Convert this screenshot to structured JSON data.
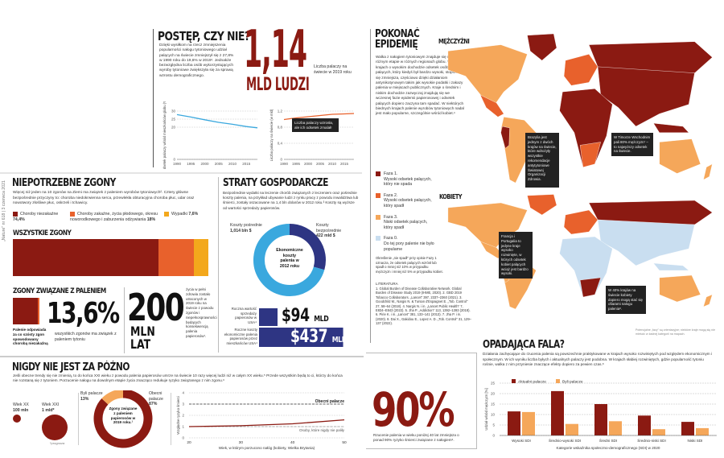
{
  "side_label": "„Nature\" nr 618 | 3 czerwca 2021",
  "progress": {
    "title": "POSTĘP, CZY NIE?",
    "text": "Dzięki wysiłkom na rzecz zmniejszenia popularności nałogu tytoniowego udział palących na świecie zmniejszył się z 27,8% w 1990 roku do 19,6% w 2019¹. Jednakże bezwzględna liczba osób wykorzystujących wyroby tytoniowe zwiększyła się za sprawą wzrostu demograficznego.",
    "big_number": "1,14",
    "big_unit": "MLD LUDZI",
    "big_caption": "Liczba palaczy na świecie w 2019 roku",
    "callout": "Liczba palaczy wzrosła, ale ich odsetek zmalał!"
  },
  "chart_data": [
    {
      "type": "line",
      "title": "",
      "ylabel": "Odsetek palaczy wśród mieszkańców globu (%)",
      "xlabel": "",
      "x": [
        1990,
        1995,
        2000,
        2005,
        2010,
        2015,
        2019
      ],
      "series": [
        {
          "name": "Odsetek palaczy",
          "values": [
            27.8,
            26.3,
            24.6,
            23.0,
            21.8,
            20.4,
            19.6
          ],
          "color": "#3aa8de"
        }
      ],
      "ylim": [
        0,
        30
      ],
      "yticks": [
        "0",
        "20",
        "25",
        "30"
      ],
      "xticks": [
        "1990",
        "1995",
        "2000",
        "2005",
        "2010",
        "2015"
      ]
    },
    {
      "type": "line",
      "title": "",
      "ylabel": "Liczba palaczy na świecie (w mld)",
      "xlabel": "",
      "x": [
        1990,
        1995,
        2000,
        2005,
        2010,
        2015,
        2019
      ],
      "series": [
        {
          "name": "Liczba palaczy",
          "values": [
            0.99,
            1.03,
            1.06,
            1.09,
            1.12,
            1.13,
            1.14
          ],
          "color": "#e8612c"
        }
      ],
      "ylim": [
        0,
        1.2
      ],
      "yticks": [
        "0",
        "0,4",
        "0,8",
        "1,2"
      ],
      "xticks": [
        "1990",
        "1995",
        "2000",
        "2005",
        "2010",
        "2015"
      ]
    },
    {
      "type": "bar",
      "title": "OPADAJĄCA FALA?",
      "xlabel": "Kategorie wskaźnika społeczno-demograficznego (SDI) w 2020",
      "ylabel": "Udział wśród mężczyzn [%]",
      "categories": [
        "Wysoki SDI",
        "Średnio-wysoki SDI",
        "Średni SDI",
        "Średnio-niski SDI",
        "Niski SDI"
      ],
      "series": [
        {
          "name": "Aktualni palacze",
          "values": [
            11.5,
            21.2,
            15.0,
            9.5,
            6.5
          ],
          "color": "#8b1a12"
        },
        {
          "name": "Byli palacze",
          "values": [
            11.2,
            5.5,
            6.8,
            3.0,
            3.5
          ],
          "color": "#f5a75a"
        }
      ],
      "ylim": [
        0,
        25
      ],
      "yticks": [
        "0",
        "5",
        "10",
        "15",
        "20",
        "25"
      ],
      "legend": "top-left"
    },
    {
      "type": "line",
      "title": "",
      "xlabel": "Wiek, w którym porzucono nałóg (kobiety, Wielka Brytania)",
      "ylabel": "Względne ryzyko śmierci",
      "x": [
        20,
        30,
        40,
        50
      ],
      "series": [
        {
          "name": "Porzucający nałóg",
          "values": [
            1.0,
            1.08,
            1.25,
            1.6
          ],
          "color": "#8b1a12"
        },
        {
          "name": "Obecni palacze",
          "values": [
            3,
            3,
            3,
            3
          ],
          "color": "#333"
        },
        {
          "name": "Osoby, które nigdy nie paliły",
          "values": [
            1,
            1,
            1,
            1
          ],
          "color": "#999"
        }
      ],
      "xlim": [
        20,
        50
      ],
      "ylim": [
        0,
        4
      ],
      "xticks": [
        "20",
        "30",
        "40",
        "50"
      ],
      "yticks": [
        "0",
        "1",
        "2",
        "3",
        "4"
      ],
      "labels": {
        "current": "Obecni palacze",
        "never": "Osoby, które nigdy nie paliły"
      }
    }
  ],
  "deaths": {
    "title": "NIEPOTRZEBNE ZGONY",
    "text": "Więcej niż jeden na 10 zgonów na Ziemi ma związek z paleniem wyrobów tytoniowych². Cztery główne bezpośrednie przyczyny to: choroba niedokrwienna serca, przewlekła obturacyjna choroba płuc, udar oraz nowotwory złośliwe płuc, oskrzeli i tchawicy.",
    "legend": [
      {
        "label": "Choroby niezakaźne",
        "value": "74,4%",
        "color": "#8b1a12",
        "share": 74.4
      },
      {
        "label": "Choroby zakaźne, życia płodowego, okresu noworodkowego i zaburzenia odżywiania",
        "value": "18%",
        "color": "#e8612c",
        "share": 18
      },
      {
        "label": "Wypadki",
        "value": "7,6%",
        "color": "#f3a81c",
        "share": 7.6
      }
    ],
    "all_label": "WSZYSTKIE ZGONY",
    "smoking_title": "ZGONY ZWIĄZANE Z PALENIEM",
    "smoking_note": "Palenie odpowiada za co szósty zgon spowodowany chorobą niezakaźną",
    "pct": "13,6%",
    "pct_caption": "wszystkich zgonów ma związek z paleniem tytoniu",
    "years_number": "200",
    "years_unit1": "MLN",
    "years_unit2": "LAT",
    "years_caption": "życia w pełni zdrowia zostało utraconych w 2019 roku na świecie z powodu zgonów i niepełnosprawności będących konsekwencją palenia papierosów¹."
  },
  "economy": {
    "title": "STRATY GOSPODARCZE",
    "text": "Bezpośrednie wydatki na leczenie chorób związanych z leczeniem oraz pośrednie koszty palenia, na przykład ubywanie ludzi z rynku pracy z powodu inwalidztwa lub śmierci, zostały oszacowane na 1,4 bln dolarów w 2012 roku.³ Koszty są wyższe od wartości sprzedaży papierosów.",
    "indirect_label": "Koszty pośrednie",
    "indirect_value": "1,014 bln $",
    "direct_label": "Koszty bezpośrednie",
    "direct_value": "422 mld $",
    "donut_center": "Ekonomiczne koszty palenia w 2012 roku",
    "indirect_share": 70.6,
    "direct_share": 29.4,
    "sales_label": "Roczna wartość sprzedaży papierosów w USA⁴",
    "sales_value": "$94",
    "sales_unit": "MLD",
    "costs_label": "Roczne koszty ekonomiczne palenia papierosów przez mieszkańców USA⁴",
    "costs_value": "$437",
    "costs_unit": "MLD"
  },
  "never": {
    "title": "NIGDY NIE JEST ZA PÓŹNO",
    "text": "Jeśli obecne trendy się nie zmienią, to do końca XXI wieku z powodu palenia papierosów umrze na świecie 10 razy więcej ludzi niż w całym XX wieku.⁵ Przede wszystkim będą to ci, którzy do końca nie rozstaną się z tytoniem. Porzucenie nałogu na dowolnym etapie życia znacząco redukuje ryzyko związanego z nim zgonu.⁶",
    "c20_label": "Wiek XX",
    "c20_value": "100 mln",
    "c21_label": "Wiek XXI",
    "c21_value": "1 mld*",
    "forecast": "*prognoza",
    "former_label": "Byli palacze",
    "former_value": "13%",
    "current_label": "Obecni palacze",
    "current_value": "87%",
    "donut_center": "Zgony związane z paleniem papierosów w 2019 roku.¹",
    "former_share": 13,
    "current_share": 87
  },
  "epidemic": {
    "title1": "POKONAĆ",
    "title2": "EPIDEMIĘ",
    "text": "Walka z nałogiem tytoniowym znajduje się na różnym etapie w różnych regionach globu. W wielu krajach o wysokim dochodzie odsetek osób palących, który kiedyś był bardzo wysoki, stopniowo się zmniejsza, częściowo dzięki działaniom antynikotynowym takim jak wysokie podatki i zakazy palenia w miejscach publicznych. Kraje o średnim i niskim dochodzie zazwyczaj znajdują się we wczesnej fazie epidemii papierosowej i odsetek palących dopiero zaczyna tam spadać. W niektórych biednych krajach palenie wyrobów tytoniowych nadal jest mało popularne, szczególnie wśród kobiet.⁹",
    "phases": [
      {
        "label": "Faza 1.",
        "desc": "Wysoki odsetek palących, który nie spada",
        "color": "#8b1a12"
      },
      {
        "label": "Faza 2.",
        "desc": "Wysoki odsetek palących, który spadł",
        "color": "#e8612c"
      },
      {
        "label": "Faza 3.",
        "desc": "Niski odsetek palących, który spadł",
        "color": "#f5a75a"
      },
      {
        "label": "Faza 0.",
        "desc": "Do tej pory palenie nie było popularne",
        "color": "#c9def0"
      }
    ],
    "note": "Określenie „nie spadł\" przy opisie Fazy 1 oznacza, że odsetek palących wzrósł lub spadł o mniej niż 10% w przypadku mężczyzn i mniej niż 5% w przypadku kobiet.",
    "lit_title": "LITERATURA",
    "lit": "1. Global Burden of Disease Collaborative Network. Global Burden of Disease Study 2019 (IHME, 2020). 2. GBD 2019 Tobacco Collaborators. „Lancet\" 397, 2337–2360 (2021). 3. Goodchild M., Nargis N. & Tursan d'Espaignet E. „Tob. Control\" 27, 58–64 (2018). 4. Nargis N. i in. „Lancet Public Health\" 7, E834–E843 (2022). 5. Jha P. „Addiction\" 113, 1392–1393 (2018). 6. Pirie K. i in. „Lancet\" 381, 133–141 (2013). 7. Jha P. i in. (2020). 8. Dai X., Gakidou E., Lopez A. D. „Tob. Control\" 31, 129–137 (2022).",
    "men_label": "MĘŻCZYŹNI",
    "women_label": "KOBIETY",
    "callout_brazil": "Brazylia jest jednym z dwóch krajów na świecie, które wdrożyły wszystkie rekomendacje antytytoniowe Światowej Organizacji Zdrowia.",
    "callout_timor": "W Timorze Wschodnim pali 80% mężczyzn⁷ – to najwyższy odsetek na świecie.",
    "callout_france": "Francja i Portugalia to jedyne kraje wysoko rozwinięte, w których odsetek kobiet palących wciąż jest bardzo wysoki.",
    "callout_women": "W 40% krajów na świecie kobiety dopiero mogą stać się ofiarami nałogu palenia⁸.",
    "map_credit": "Potencjalne „fazy\" są orientacyjne; niektóre kraje mogą się nie mieścić w żadnej kategorii na mapach."
  },
  "ninety": {
    "value": "90%",
    "caption": "Rzucenie palenia w wieku poniżej 40 lat zmniejsza o ponad 90% ryzyko śmierci związane z nałogiem⁶."
  },
  "wave": {
    "text": "Działania zachęcające do rzucenia palenia są powszechnie praktykowane w krajach wysoko rozwiniętych pod względem ekonomicznym i społecznym. W ich wyniku liczba byłych i aktualnych palaczy jest podobna. W krajach słabiej rozwiniętych, gdzie popularność tytoniu rośnie, walka z nim przyniesie znaczące efekty dopiero za pewien czas.⁸"
  }
}
